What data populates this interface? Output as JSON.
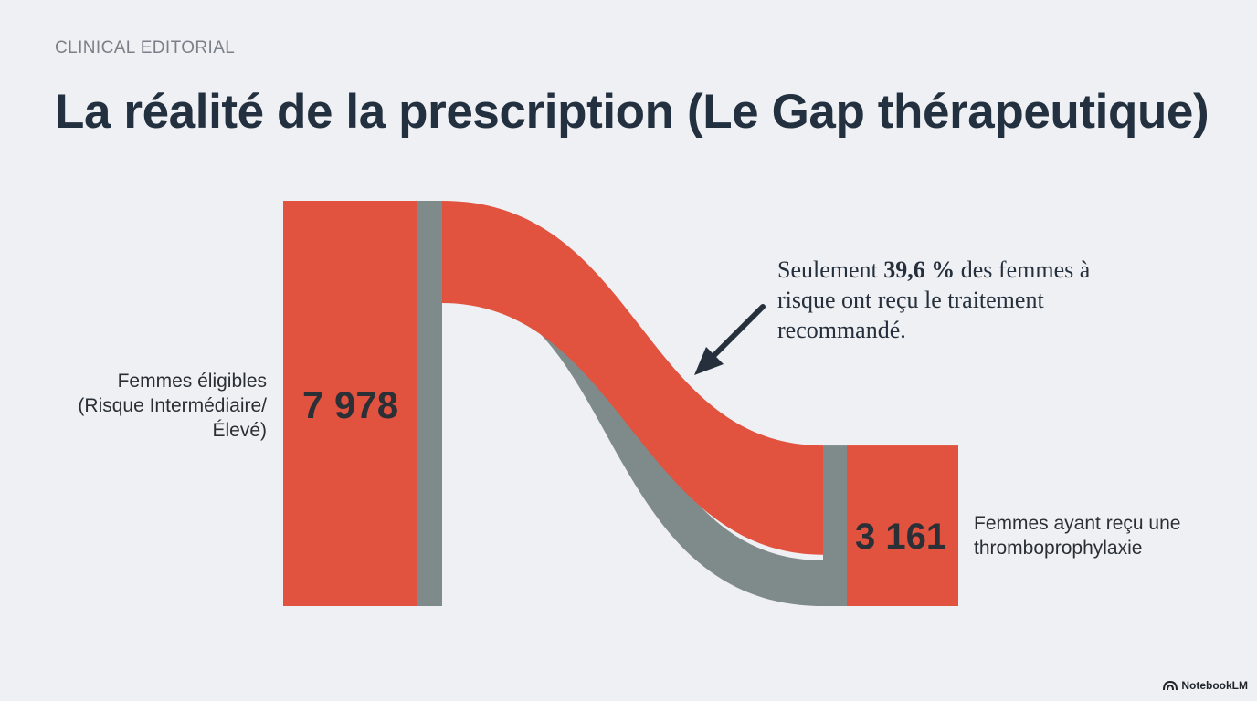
{
  "header": {
    "kicker": "CLINICAL EDITORIAL",
    "title": "La réalité de la prescription (Le Gap thérapeutique)"
  },
  "chart_data": {
    "type": "sankey",
    "source": {
      "label": "Femmes éligibles (Risque Intermédiaire/Élevé)",
      "value": 7978,
      "display": "7 978"
    },
    "target": {
      "label": "Femmes ayant reçu une thromboprophylaxie",
      "value": 3161,
      "display": "3 161"
    },
    "flows": [
      {
        "value": 3161,
        "color": "#e1523f"
      },
      {
        "value": 4817,
        "color": "#7f8b8a"
      }
    ],
    "annotation": {
      "before": "Seulement ",
      "highlight": "39,6 %",
      "after": " des femmes à risque ont reçu le traitement recommandé."
    }
  },
  "colors": {
    "accent": "#e1523f",
    "neutral": "#7f8b8a",
    "text": "#23303f",
    "background": "#eef0f3"
  },
  "branding": {
    "icon": "notebooklm-logo-icon",
    "label": "NotebookLM"
  }
}
